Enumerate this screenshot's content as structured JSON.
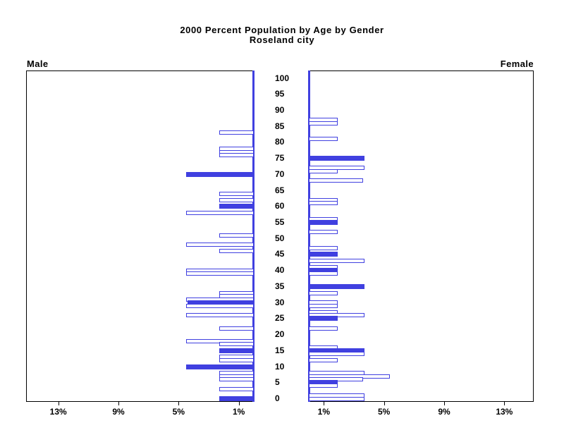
{
  "title": {
    "line1": "2000 Percent Population by Age by Gender",
    "line2": "Roseland city"
  },
  "panels": {
    "male_label": "Male",
    "female_label": "Female"
  },
  "axes": {
    "age_tick_labels": [
      0,
      5,
      10,
      15,
      20,
      25,
      30,
      35,
      40,
      45,
      50,
      55,
      60,
      65,
      70,
      75,
      80,
      85,
      90,
      95,
      100
    ],
    "male_pct_ticks": [
      {
        "label": "13%",
        "value": 13
      },
      {
        "label": "9%",
        "value": 9
      },
      {
        "label": "5%",
        "value": 5
      },
      {
        "label": "1%",
        "value": 1
      }
    ],
    "female_pct_ticks": [
      {
        "label": "1%",
        "value": 1
      },
      {
        "label": "5%",
        "value": 5
      },
      {
        "label": "9%",
        "value": 9
      },
      {
        "label": "13%",
        "value": 13
      }
    ]
  },
  "colors": {
    "bar_blue": "#4040e0",
    "frame_black": "#000000"
  },
  "chart_data": {
    "type": "bar",
    "orientation": "horizontal-pyramid",
    "title": "2000 Percent Population by Age by Gender — Roseland city",
    "age_axis": {
      "min": 0,
      "max": 100,
      "tick_step": 5
    },
    "percent_axis": {
      "min": 0,
      "max": 15.2,
      "ticks": [
        1,
        5,
        9,
        13
      ],
      "unit": "% of population"
    },
    "legend_position": "none",
    "grid": false,
    "bar_style_note": "solid = filled blue bar, hollow = white bar with blue outline",
    "series": [
      {
        "name": "Male",
        "side": "left",
        "points": [
          {
            "age": 83,
            "pct": 2.3,
            "solid": false
          },
          {
            "age": 78,
            "pct": 2.3,
            "solid": false
          },
          {
            "age": 77,
            "pct": 2.3,
            "solid": false
          },
          {
            "age": 76,
            "pct": 2.3,
            "solid": false
          },
          {
            "age": 70,
            "pct": 4.5,
            "solid": true
          },
          {
            "age": 64,
            "pct": 2.3,
            "solid": false
          },
          {
            "age": 62,
            "pct": 2.3,
            "solid": false
          },
          {
            "age": 60,
            "pct": 2.3,
            "solid": true
          },
          {
            "age": 58,
            "pct": 4.5,
            "solid": false
          },
          {
            "age": 51,
            "pct": 2.3,
            "solid": false
          },
          {
            "age": 48,
            "pct": 4.5,
            "solid": false
          },
          {
            "age": 46,
            "pct": 2.3,
            "solid": false
          },
          {
            "age": 40,
            "pct": 4.5,
            "solid": false
          },
          {
            "age": 39,
            "pct": 4.5,
            "solid": false
          },
          {
            "age": 33,
            "pct": 2.3,
            "solid": false
          },
          {
            "age": 32,
            "pct": 2.3,
            "solid": false
          },
          {
            "age": 31,
            "pct": 4.5,
            "solid": false
          },
          {
            "age": 30,
            "pct": 4.4,
            "solid": true
          },
          {
            "age": 29,
            "pct": 4.5,
            "solid": false
          },
          {
            "age": 26,
            "pct": 4.5,
            "solid": false
          },
          {
            "age": 22,
            "pct": 2.3,
            "solid": false
          },
          {
            "age": 18,
            "pct": 4.5,
            "solid": false
          },
          {
            "age": 17,
            "pct": 2.3,
            "solid": false
          },
          {
            "age": 15,
            "pct": 2.3,
            "solid": true
          },
          {
            "age": 13,
            "pct": 2.3,
            "solid": false
          },
          {
            "age": 12,
            "pct": 2.3,
            "solid": false
          },
          {
            "age": 10,
            "pct": 4.5,
            "solid": true
          },
          {
            "age": 8,
            "pct": 2.3,
            "solid": false
          },
          {
            "age": 7,
            "pct": 2.3,
            "solid": false
          },
          {
            "age": 6,
            "pct": 2.3,
            "solid": false
          },
          {
            "age": 3,
            "pct": 2.3,
            "solid": false
          },
          {
            "age": 0,
            "pct": 2.3,
            "solid": true
          }
        ]
      },
      {
        "name": "Female",
        "side": "right",
        "points": [
          {
            "age": 87,
            "pct": 1.9,
            "solid": false
          },
          {
            "age": 86,
            "pct": 1.9,
            "solid": false
          },
          {
            "age": 81,
            "pct": 1.9,
            "solid": false
          },
          {
            "age": 75,
            "pct": 3.7,
            "solid": true
          },
          {
            "age": 72,
            "pct": 3.7,
            "solid": false
          },
          {
            "age": 71,
            "pct": 1.9,
            "solid": false
          },
          {
            "age": 68,
            "pct": 3.6,
            "solid": false
          },
          {
            "age": 62,
            "pct": 1.9,
            "solid": false
          },
          {
            "age": 61,
            "pct": 1.9,
            "solid": false
          },
          {
            "age": 56,
            "pct": 1.9,
            "solid": false
          },
          {
            "age": 55,
            "pct": 1.9,
            "solid": true
          },
          {
            "age": 52,
            "pct": 1.9,
            "solid": false
          },
          {
            "age": 47,
            "pct": 1.9,
            "solid": false
          },
          {
            "age": 45,
            "pct": 1.9,
            "solid": true
          },
          {
            "age": 43,
            "pct": 3.7,
            "solid": false
          },
          {
            "age": 41,
            "pct": 1.9,
            "solid": false
          },
          {
            "age": 40,
            "pct": 1.9,
            "solid": true
          },
          {
            "age": 39,
            "pct": 1.9,
            "solid": false
          },
          {
            "age": 35,
            "pct": 3.7,
            "solid": true
          },
          {
            "age": 33,
            "pct": 1.9,
            "solid": false
          },
          {
            "age": 30,
            "pct": 1.9,
            "solid": false
          },
          {
            "age": 29,
            "pct": 1.9,
            "solid": false
          },
          {
            "age": 27,
            "pct": 1.9,
            "solid": false
          },
          {
            "age": 26,
            "pct": 3.7,
            "solid": false
          },
          {
            "age": 25,
            "pct": 1.9,
            "solid": true
          },
          {
            "age": 22,
            "pct": 1.9,
            "solid": false
          },
          {
            "age": 16,
            "pct": 1.9,
            "solid": false
          },
          {
            "age": 15,
            "pct": 3.7,
            "solid": true
          },
          {
            "age": 14,
            "pct": 3.7,
            "solid": false
          },
          {
            "age": 12,
            "pct": 1.9,
            "solid": false
          },
          {
            "age": 8,
            "pct": 3.7,
            "solid": false
          },
          {
            "age": 7,
            "pct": 5.4,
            "solid": false
          },
          {
            "age": 6,
            "pct": 3.6,
            "solid": false
          },
          {
            "age": 5,
            "pct": 1.9,
            "solid": true
          },
          {
            "age": 4,
            "pct": 1.9,
            "solid": false
          },
          {
            "age": 1,
            "pct": 3.7,
            "solid": false
          },
          {
            "age": 0,
            "pct": 3.7,
            "solid": false
          }
        ]
      }
    ]
  }
}
